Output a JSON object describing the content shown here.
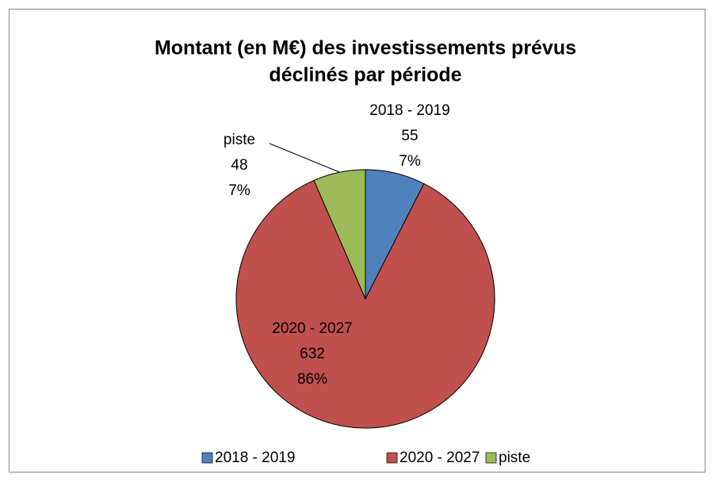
{
  "chart_data": {
    "type": "pie",
    "title": [
      "Montant (en M€) des investissements prévus",
      "déclinés par période"
    ],
    "categories": [
      "2018 - 2019",
      "2020 - 2027",
      "piste"
    ],
    "values": [
      55,
      632,
      48
    ],
    "percent_labels": [
      "7%",
      "86%",
      "7%"
    ],
    "colors": [
      "#4f81bd",
      "#c0504d",
      "#9bbb59"
    ],
    "legend": "bottom"
  }
}
